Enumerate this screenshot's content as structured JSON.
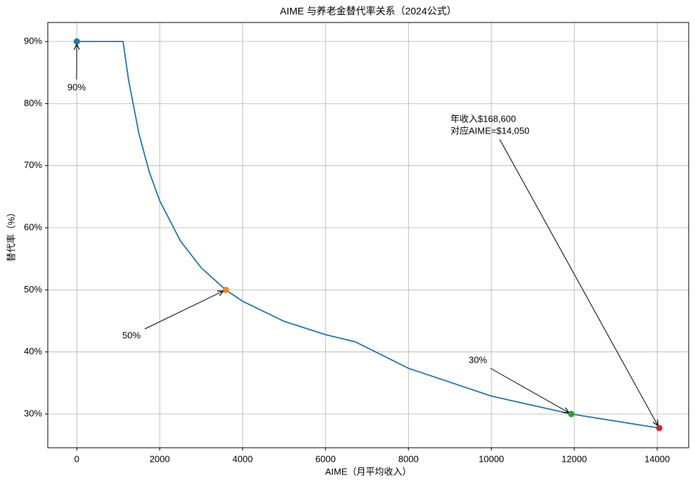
{
  "chart_data": {
    "type": "line",
    "title": "AIME 与养老金替代率关系（2024公式）",
    "x_label": "AIME（月平均收入）",
    "y_label": "替代率（%）",
    "x": [
      0,
      1115,
      1250,
      1500,
      1750,
      2000,
      2500,
      3000,
      3593,
      4000,
      5000,
      6000,
      6721,
      8000,
      10000,
      11928,
      14050
    ],
    "series": [
      {
        "name": "替代率",
        "color": "#1f77b4",
        "values": [
          90,
          90,
          83.74,
          75.11,
          68.95,
          64.34,
          57.87,
          53.56,
          50.0,
          48.17,
          44.93,
          42.78,
          41.62,
          37.37,
          32.89,
          30.0,
          27.74
        ]
      }
    ],
    "points": [
      {
        "x": 0,
        "y": 90,
        "color": "#1f77b4"
      },
      {
        "x": 3593,
        "y": 50,
        "color": "#ff7f0e"
      },
      {
        "x": 11928,
        "y": 30,
        "color": "#2ca02c"
      },
      {
        "x": 14050,
        "y": 27.74,
        "color": "#d62728"
      }
    ],
    "annotations": [
      {
        "lines": [
          "90%"
        ]
      },
      {
        "lines": [
          "50%"
        ]
      },
      {
        "lines": [
          "30%"
        ]
      },
      {
        "lines": [
          "年收入$168,600",
          "对应AIME=$14,050"
        ]
      }
    ],
    "xlim": [
      -700,
      14760
    ],
    "ylim": [
      24.57,
      93.06
    ],
    "xticks": [
      0,
      2000,
      4000,
      6000,
      8000,
      10000,
      12000,
      14000
    ],
    "yticks": [
      {
        "value": 30,
        "label": "30%"
      },
      {
        "value": 40,
        "label": "40%"
      },
      {
        "value": 50,
        "label": "50%"
      },
      {
        "value": 60,
        "label": "60%"
      },
      {
        "value": 70,
        "label": "70%"
      },
      {
        "value": 80,
        "label": "80%"
      },
      {
        "value": 90,
        "label": "90%"
      }
    ],
    "grid": true
  }
}
